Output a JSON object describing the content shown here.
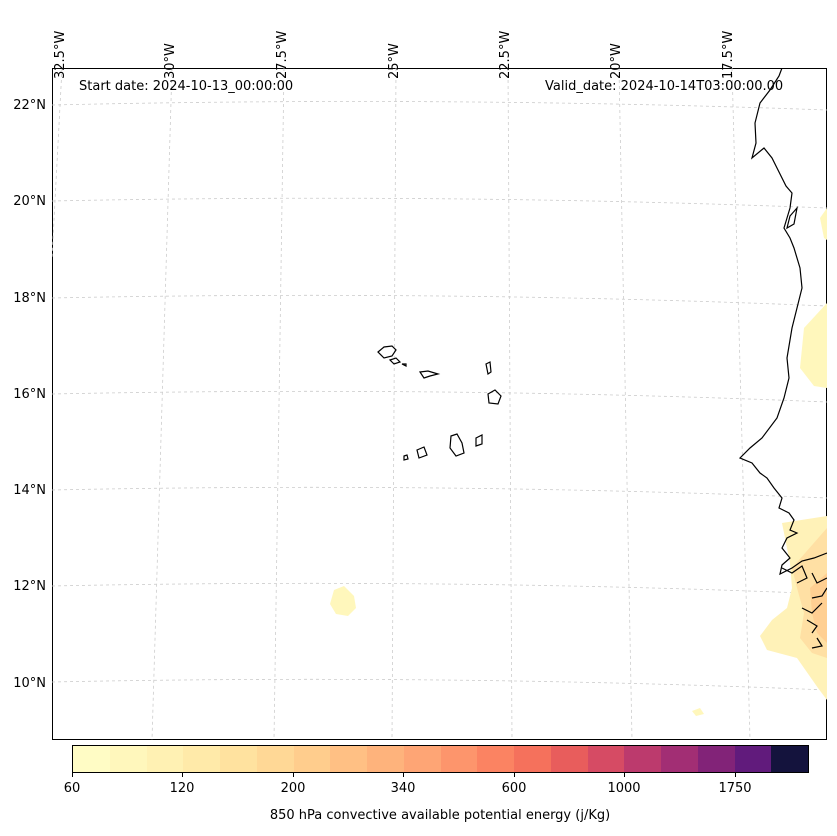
{
  "header": {
    "start_date": "Start date: 2024-10-13_00:00:00",
    "valid_date": "Valid_date: 2024-10-14T03:00:00.00"
  },
  "axes": {
    "lat_labels": [
      "22°N",
      "20°N",
      "18°N",
      "16°N",
      "14°N",
      "12°N",
      "10°N"
    ],
    "lon_labels": [
      "32.5°W",
      "30°W",
      "27.5°W",
      "25°W",
      "22.5°W",
      "20°W",
      "17.5°W"
    ]
  },
  "colorbar": {
    "label": "850 hPa convective available potential energy (j/Kg)",
    "tick_labels": [
      "60",
      "120",
      "200",
      "340",
      "600",
      "1000",
      "1750"
    ],
    "colors": [
      "#fffcc5",
      "#fff7bc",
      "#fff1b3",
      "#ffeaa9",
      "#ffe29f",
      "#ffd896",
      "#ffcd8d",
      "#ffc084",
      "#feb37c",
      "#fea575",
      "#fd956c",
      "#fb8362",
      "#f5715c",
      "#e85d5c",
      "#d64b64",
      "#bc3a6d",
      "#a22e74",
      "#822378",
      "#611b7c",
      "#14133d"
    ]
  },
  "colors": {
    "gridline": "#cccccc",
    "coastline": "#000000",
    "cape_low": "#fff7bc",
    "cape_mid": "#ffd39a"
  }
}
